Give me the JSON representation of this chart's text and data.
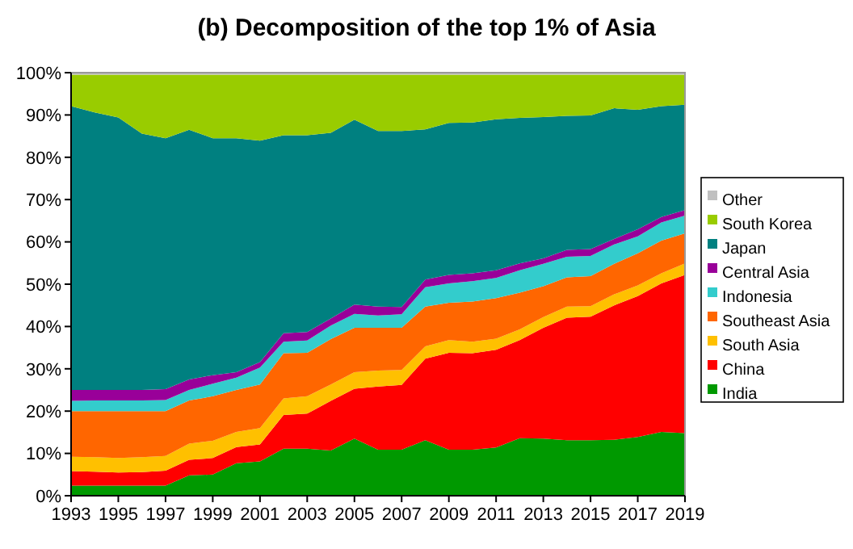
{
  "chart_data": {
    "type": "area",
    "title": "(b) Decomposition of the top 1% of Asia",
    "stacked": true,
    "legend": "right",
    "grid": false,
    "x": [
      1993,
      1994,
      1995,
      1996,
      1997,
      1998,
      1999,
      2000,
      2001,
      2002,
      2003,
      2004,
      2005,
      2006,
      2007,
      2008,
      2009,
      2010,
      2011,
      2012,
      2013,
      2014,
      2015,
      2016,
      2017,
      2018,
      2019
    ],
    "xlim": [
      1993,
      2019
    ],
    "xticks": [
      1993,
      1995,
      1997,
      1999,
      2001,
      2003,
      2005,
      2007,
      2009,
      2011,
      2013,
      2015,
      2017,
      2019
    ],
    "ylim": [
      0,
      100
    ],
    "yticks": [
      {
        "value": 0,
        "label": "0%"
      },
      {
        "value": 10,
        "label": "10%"
      },
      {
        "value": 20,
        "label": "20%"
      },
      {
        "value": 30,
        "label": "30%"
      },
      {
        "value": 40,
        "label": "40%"
      },
      {
        "value": 50,
        "label": "50%"
      },
      {
        "value": 60,
        "label": "60%"
      },
      {
        "value": 70,
        "label": "70%"
      },
      {
        "value": 80,
        "label": "80%"
      },
      {
        "value": 90,
        "label": "90%"
      },
      {
        "value": 100,
        "label": "100%"
      }
    ],
    "series": [
      {
        "name": "India",
        "color": "#009900",
        "values": [
          2.4,
          2.4,
          2.4,
          2.4,
          2.4,
          4.8,
          5.0,
          7.7,
          8.1,
          11.1,
          11.1,
          10.7,
          13.5,
          10.9,
          10.9,
          13.1,
          10.9,
          10.9,
          11.4,
          13.6,
          13.5,
          13.1,
          13.1,
          13.2,
          13.9,
          15.1,
          14.8
        ]
      },
      {
        "name": "China",
        "color": "#ff0000",
        "values": [
          3.4,
          3.3,
          3.1,
          3.2,
          3.5,
          3.7,
          3.9,
          3.8,
          4.0,
          8.0,
          8.3,
          11.7,
          11.8,
          14.9,
          15.3,
          19.3,
          22.9,
          22.8,
          23.1,
          23.2,
          26.2,
          29.0,
          29.2,
          31.8,
          33.3,
          35.1,
          37.4
        ]
      },
      {
        "name": "South Asia",
        "color": "#ffc000",
        "values": [
          3.4,
          3.4,
          3.4,
          3.5,
          3.5,
          3.8,
          4.1,
          3.6,
          3.9,
          3.9,
          4.1,
          3.9,
          3.9,
          3.8,
          3.5,
          2.9,
          3.0,
          2.7,
          2.6,
          2.5,
          2.5,
          2.6,
          2.5,
          2.6,
          2.5,
          2.4,
          2.7
        ]
      },
      {
        "name": "Southeast Asia",
        "color": "#ff6600",
        "values": [
          10.8,
          10.9,
          11.1,
          10.9,
          10.6,
          10.2,
          10.5,
          9.9,
          10.3,
          10.7,
          10.3,
          10.7,
          10.5,
          10.1,
          10.0,
          9.4,
          8.8,
          9.5,
          9.6,
          8.7,
          7.3,
          6.9,
          7.1,
          7.2,
          7.6,
          7.7,
          7.1
        ]
      },
      {
        "name": "Indonesia",
        "color": "#33cccc",
        "values": [
          2.4,
          2.5,
          2.5,
          2.5,
          2.6,
          2.5,
          3.0,
          2.9,
          4.0,
          2.7,
          2.9,
          3.2,
          3.3,
          2.9,
          3.2,
          4.6,
          4.6,
          4.8,
          4.8,
          5.3,
          5.3,
          4.9,
          4.8,
          4.6,
          4.0,
          4.3,
          4.2
        ]
      },
      {
        "name": "Central Asia",
        "color": "#990099",
        "values": [
          2.6,
          2.5,
          2.5,
          2.5,
          2.6,
          2.5,
          2.0,
          1.3,
          1.3,
          2.0,
          2.0,
          1.7,
          2.2,
          2.1,
          1.7,
          1.8,
          2.0,
          1.9,
          1.8,
          1.6,
          1.3,
          1.6,
          1.6,
          1.3,
          1.7,
          1.3,
          1.3
        ]
      },
      {
        "name": "Japan",
        "color": "#008080",
        "values": [
          67.1,
          65.6,
          64.4,
          60.6,
          59.3,
          59.0,
          56.0,
          55.3,
          52.3,
          46.8,
          46.5,
          43.9,
          43.7,
          41.5,
          41.6,
          35.5,
          35.9,
          35.6,
          35.7,
          34.4,
          33.4,
          31.7,
          31.6,
          30.9,
          28.2,
          26.2,
          24.9
        ]
      },
      {
        "name": "South Korea",
        "color": "#99cc00",
        "values": [
          7.4,
          8.9,
          10.1,
          13.9,
          15.0,
          13.0,
          15.0,
          15.0,
          15.6,
          14.3,
          14.3,
          13.7,
          10.6,
          13.3,
          13.3,
          12.9,
          11.4,
          11.3,
          10.5,
          10.2,
          10.0,
          9.7,
          9.6,
          7.9,
          8.3,
          7.4,
          7.1
        ]
      },
      {
        "name": "Other",
        "color": "#c0c0c0",
        "values": [
          0.5,
          0.5,
          0.5,
          0.5,
          0.5,
          0.5,
          0.5,
          0.5,
          0.5,
          0.5,
          0.5,
          0.5,
          0.5,
          0.5,
          0.5,
          0.5,
          0.5,
          0.5,
          0.5,
          0.5,
          0.5,
          0.5,
          0.5,
          0.5,
          0.5,
          0.5,
          0.5
        ]
      }
    ]
  }
}
